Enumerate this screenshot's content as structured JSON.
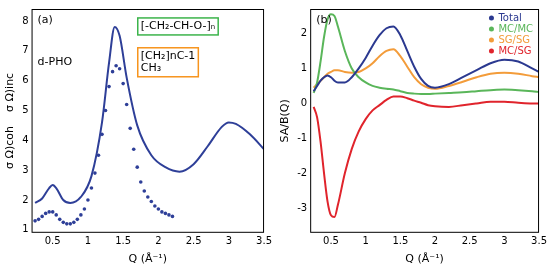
{
  "chart_data": [
    {
      "type": "line",
      "x_label": "Q (Å⁻¹)",
      "y_label": "σ Ω)coh    σ Ω)inc",
      "xlim": [
        0.2,
        3.5
      ],
      "xticks": [
        0.5,
        1,
        1.5,
        2,
        2.5,
        3,
        3.5
      ],
      "ylim": [
        0.9,
        8.4
      ],
      "yticks": [
        1,
        2,
        3,
        4,
        5,
        6,
        7,
        8
      ],
      "grid": false,
      "annotations": [
        {
          "text": [
            "(a)"
          ]
        },
        {
          "text": [
            "d-PHO"
          ]
        },
        {
          "text": [
            "[-CH₂-CH-O-]ₙ"
          ],
          "color": "#3cb44b"
        },
        {
          "text": [
            "[CH₂]nC-1",
            "CH₃"
          ],
          "color": "#f7941d"
        }
      ],
      "series": [
        {
          "color": "#2e3f98",
          "line_style": "solid",
          "marker": "none",
          "x": [
            0.25,
            0.35,
            0.45,
            0.5,
            0.55,
            0.65,
            0.75,
            0.9,
            1.05,
            1.2,
            1.3,
            1.38,
            1.45,
            1.55,
            1.7,
            1.9,
            2.1,
            2.3,
            2.5,
            2.7,
            2.9,
            3.0,
            3.1,
            3.3,
            3.5
          ],
          "values": [
            1.9,
            2.05,
            2.4,
            2.5,
            2.4,
            2.0,
            1.9,
            2.1,
            2.8,
            4.6,
            6.6,
            7.8,
            7.5,
            6.1,
            4.5,
            3.5,
            3.1,
            2.95,
            3.2,
            3.8,
            4.45,
            4.6,
            4.55,
            4.2,
            3.7
          ]
        },
        {
          "color": "#2e3f98",
          "line_style": "none",
          "marker": "circle",
          "x": [
            0.25,
            0.3,
            0.35,
            0.4,
            0.45,
            0.5,
            0.55,
            0.6,
            0.65,
            0.7,
            0.75,
            0.8,
            0.85,
            0.9,
            0.95,
            1.0,
            1.05,
            1.1,
            1.15,
            1.2,
            1.25,
            1.3,
            1.35,
            1.4,
            1.45,
            1.5,
            1.55,
            1.6,
            1.65,
            1.7,
            1.75,
            1.8,
            1.85,
            1.9,
            1.95,
            2.0,
            2.05,
            2.1,
            2.15,
            2.2
          ],
          "values": [
            1.3,
            1.35,
            1.45,
            1.55,
            1.6,
            1.6,
            1.5,
            1.35,
            1.25,
            1.2,
            1.2,
            1.25,
            1.35,
            1.5,
            1.7,
            2.0,
            2.4,
            2.9,
            3.5,
            4.2,
            5.0,
            5.8,
            6.3,
            6.5,
            6.4,
            5.9,
            5.2,
            4.4,
            3.7,
            3.1,
            2.6,
            2.3,
            2.1,
            1.95,
            1.8,
            1.7,
            1.6,
            1.55,
            1.5,
            1.45
          ]
        }
      ]
    },
    {
      "type": "line",
      "x_label": "Q (Å⁻¹)",
      "y_label": "SA/B(Q)",
      "xlim": [
        0.2,
        3.5
      ],
      "xticks": [
        0.5,
        1,
        1.5,
        2,
        2.5,
        3,
        3.5
      ],
      "ylim": [
        -3.7,
        2.7
      ],
      "yticks": [
        -3,
        -2,
        -1,
        0,
        1,
        2
      ],
      "grid": false,
      "legend": "upper right",
      "annotations": [
        {
          "text": [
            "(b)"
          ]
        }
      ],
      "x": [
        0.25,
        0.3,
        0.35,
        0.4,
        0.45,
        0.5,
        0.55,
        0.6,
        0.7,
        0.8,
        0.9,
        1.0,
        1.1,
        1.2,
        1.3,
        1.4,
        1.5,
        1.6,
        1.7,
        1.8,
        1.9,
        2.0,
        2.2,
        2.4,
        2.6,
        2.8,
        3.0,
        3.2,
        3.4,
        3.5
      ],
      "series": [
        {
          "name": "Total",
          "color": "#2b3990",
          "line_style": "solid",
          "marker": "none",
          "values": [
            0.35,
            0.5,
            0.65,
            0.75,
            0.8,
            0.75,
            0.65,
            0.6,
            0.6,
            0.75,
            1.0,
            1.3,
            1.65,
            1.95,
            2.15,
            2.2,
            1.95,
            1.5,
            1.05,
            0.7,
            0.5,
            0.45,
            0.55,
            0.75,
            0.95,
            1.15,
            1.25,
            1.2,
            1.0,
            0.9
          ]
        },
        {
          "name": "MC/MC",
          "color": "#5ab65a",
          "line_style": "solid",
          "marker": "none",
          "values": [
            0.3,
            0.6,
            1.2,
            1.9,
            2.4,
            2.55,
            2.5,
            2.2,
            1.5,
            1.0,
            0.75,
            0.6,
            0.5,
            0.45,
            0.42,
            0.4,
            0.35,
            0.3,
            0.28,
            0.27,
            0.27,
            0.28,
            0.3,
            0.32,
            0.35,
            0.38,
            0.4,
            0.38,
            0.35,
            0.33
          ]
        },
        {
          "name": "SG/SG",
          "color": "#f39c3a",
          "line_style": "solid",
          "marker": "none",
          "values": [
            0.45,
            0.55,
            0.65,
            0.75,
            0.85,
            0.9,
            0.95,
            0.95,
            0.9,
            0.88,
            0.9,
            1.0,
            1.15,
            1.35,
            1.5,
            1.55,
            1.35,
            1.05,
            0.75,
            0.55,
            0.45,
            0.42,
            0.5,
            0.62,
            0.75,
            0.85,
            0.88,
            0.85,
            0.78,
            0.75
          ]
        },
        {
          "name": "MC/SG",
          "color": "#e0242c",
          "line_style": "solid",
          "marker": "none",
          "values": [
            -0.1,
            -0.4,
            -1.1,
            -2.0,
            -2.8,
            -3.2,
            -3.25,
            -2.9,
            -2.0,
            -1.3,
            -0.8,
            -0.45,
            -0.2,
            -0.05,
            0.1,
            0.2,
            0.2,
            0.15,
            0.08,
            0.02,
            -0.05,
            -0.08,
            -0.1,
            -0.05,
            0.0,
            0.05,
            0.05,
            0.02,
            0.0,
            0.0
          ]
        }
      ]
    }
  ]
}
